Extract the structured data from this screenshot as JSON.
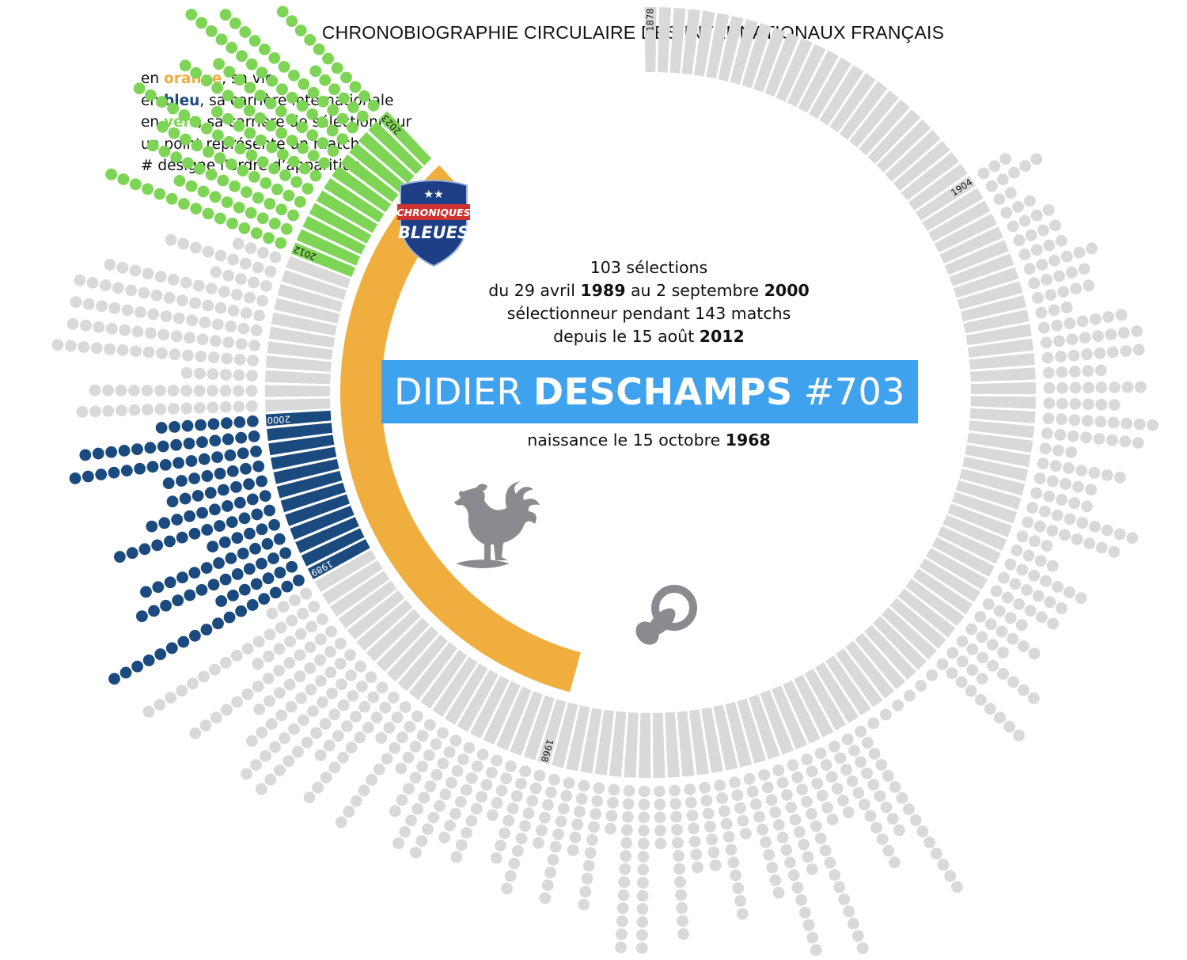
{
  "title": "CHRONOBIOGRAPHIE CIRCULAIRE DES INTERNATIONAUX FRANÇAIS",
  "legend": {
    "line1": {
      "pre": "en ",
      "key": "orange",
      "post": ", sa vie"
    },
    "line2": {
      "pre": "en ",
      "key": "bleu",
      "post": ", sa carrière internationale"
    },
    "line3": {
      "pre": "en ",
      "key": "vert",
      "post": ", sa carrière de sélectionneur"
    },
    "line4": "un point représente un match",
    "line5": "# désigne l’ordre d’apparition"
  },
  "logo": {
    "line1": "CHRONIQUES",
    "line2": "BLEUES",
    "stars": "★★"
  },
  "info": {
    "selections": "103 sélections",
    "period_pre": "du 29 avril ",
    "period_y1": "1989",
    "period_mid": "  au 2 septembre ",
    "period_y2": "2000",
    "coach": "sélectionneur pendant 143 matchs",
    "since_pre": "depuis le 15 août ",
    "since_year": "2012"
  },
  "player": {
    "first_name": "DIDIER",
    "last_name": "DESCHAMPS",
    "number": "#703"
  },
  "birth": {
    "pre": "naissance le 15 octobre ",
    "year": "1968"
  },
  "colors": {
    "life": "#F0AE3E",
    "international": "#1B4A7E",
    "coach": "#7ED555",
    "inactive": "#D9D9D9",
    "banner": "#3FA2EE",
    "icon": "#8A8B8F"
  },
  "icons": [
    "rooster-icon",
    "pacifier-icon",
    "chroniques-bleues-shield-logo"
  ],
  "chart_data": {
    "type": "radial timeline",
    "year_start": 1878,
    "year_end": 2023,
    "year_labels": [
      "1878",
      "1904",
      "1968",
      "1989",
      "2000",
      "2012",
      "2023"
    ],
    "life": {
      "from": 1968,
      "to": 2023
    },
    "international_career": {
      "from": 1989,
      "to": 2000,
      "matches": 103
    },
    "coach_career": {
      "from": 2012,
      "to": 2023,
      "matches": 143
    }
  }
}
